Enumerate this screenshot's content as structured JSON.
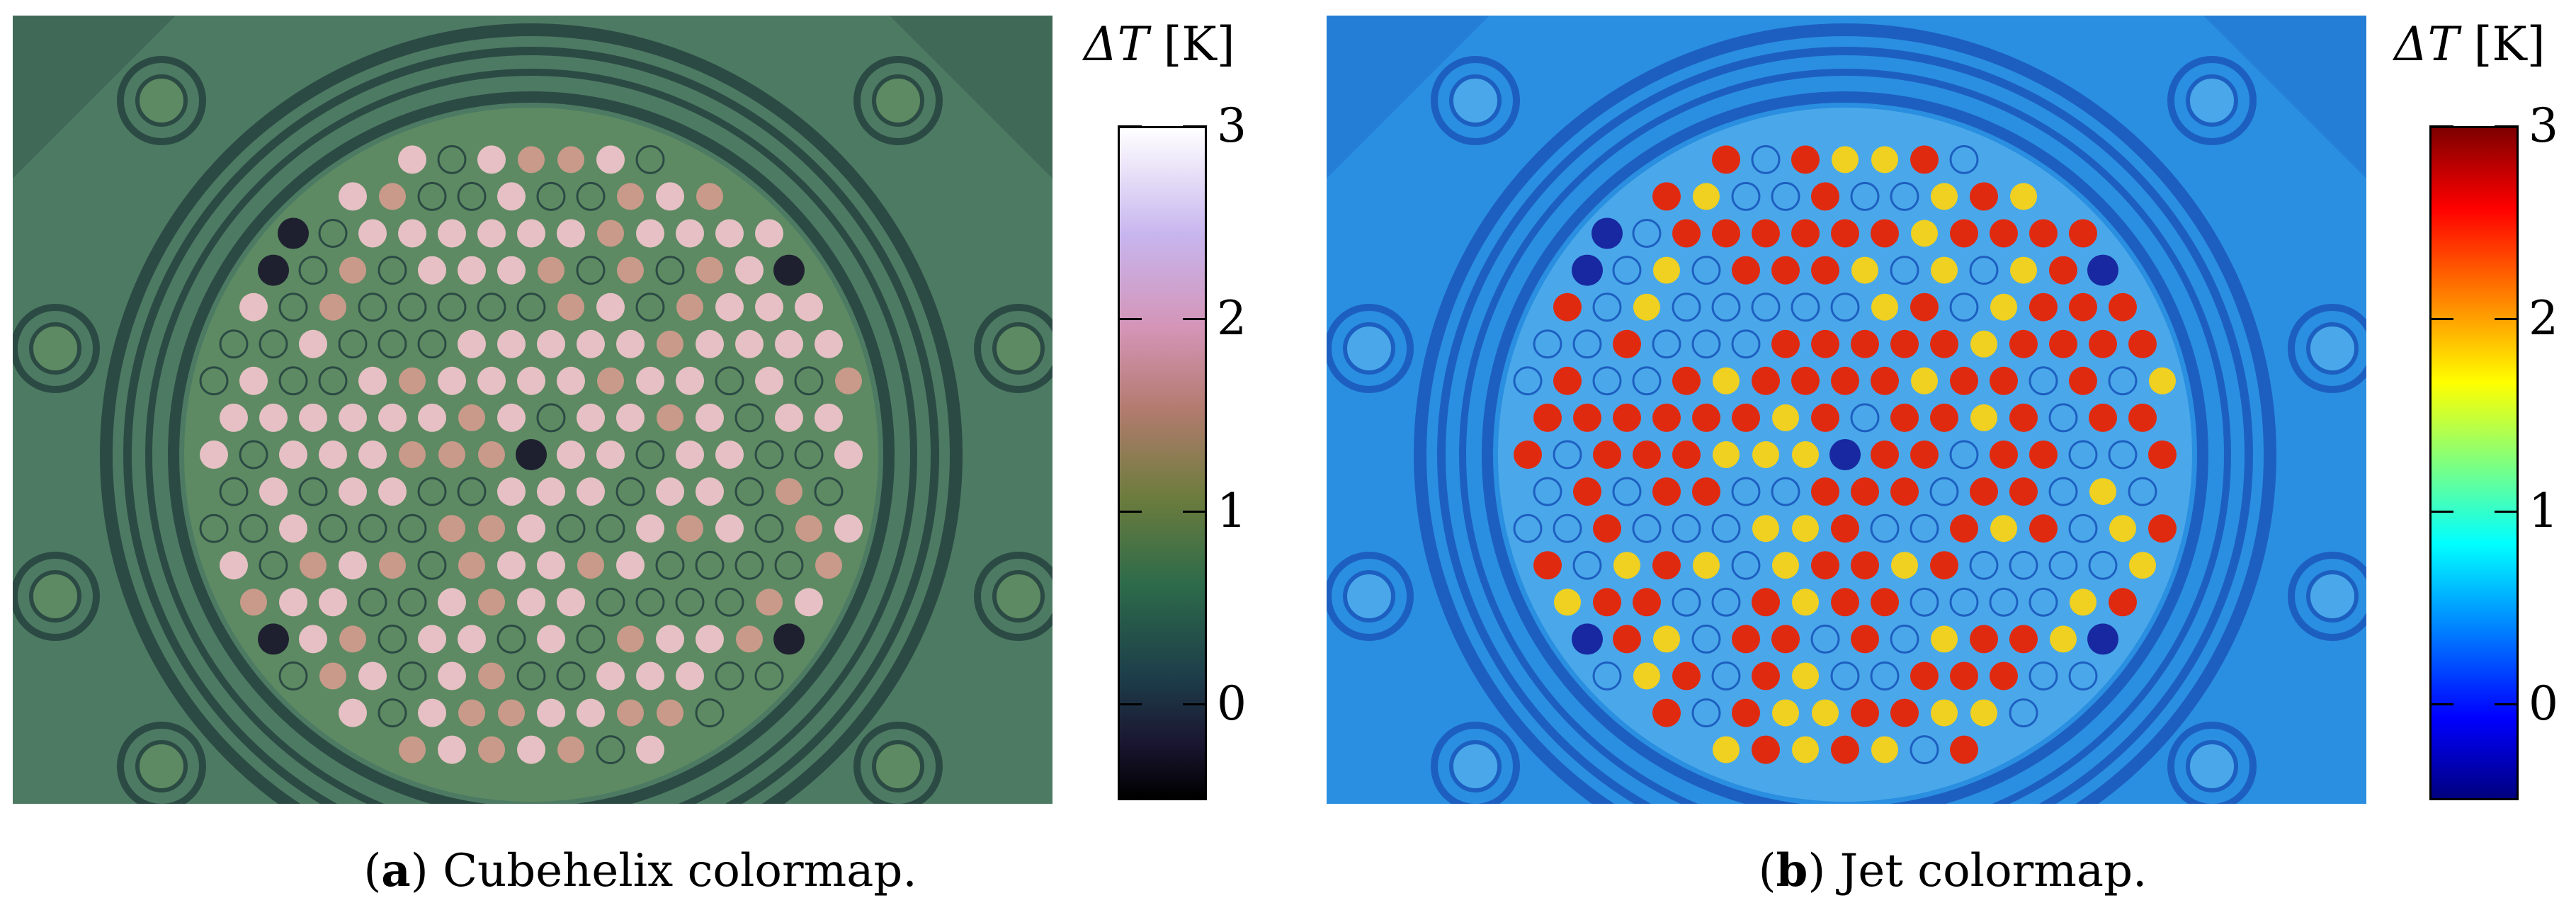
{
  "figure": {
    "panels": [
      {
        "id": "a",
        "caption_letter": "a",
        "caption_text": "Cubehelix colormap.",
        "colormap_name": "cubehelix",
        "colorbar_title_symbol": "ΔT",
        "colorbar_title_unit": "[K]",
        "ticks": [
          "3",
          "2",
          "1",
          "0"
        ],
        "tick_values": [
          3,
          2,
          1,
          0
        ],
        "range": [
          -0.5,
          3
        ],
        "colors": {
          "background": "#4d7a63",
          "ring_dark": "#2c4a44",
          "dot_hot": "#e6c0c4",
          "dot_warm": "#c99a8a",
          "dot_cold": "#1e2030",
          "plate": "#5d8a62"
        }
      },
      {
        "id": "b",
        "caption_letter": "b",
        "caption_text": "Jet colormap.",
        "colormap_name": "jet",
        "colorbar_title_symbol": "ΔT",
        "colorbar_title_unit": "[K]",
        "ticks": [
          "3",
          "2",
          "1",
          "0"
        ],
        "tick_values": [
          3,
          2,
          1,
          0
        ],
        "range": [
          -0.5,
          3
        ],
        "colors": {
          "background": "#2a8fe0",
          "ring_dark": "#1d5fc0",
          "dot_hot": "#e02a10",
          "dot_warm": "#f0d020",
          "dot_cold": "#1828a0",
          "plate": "#4aa8ea"
        }
      }
    ]
  }
}
